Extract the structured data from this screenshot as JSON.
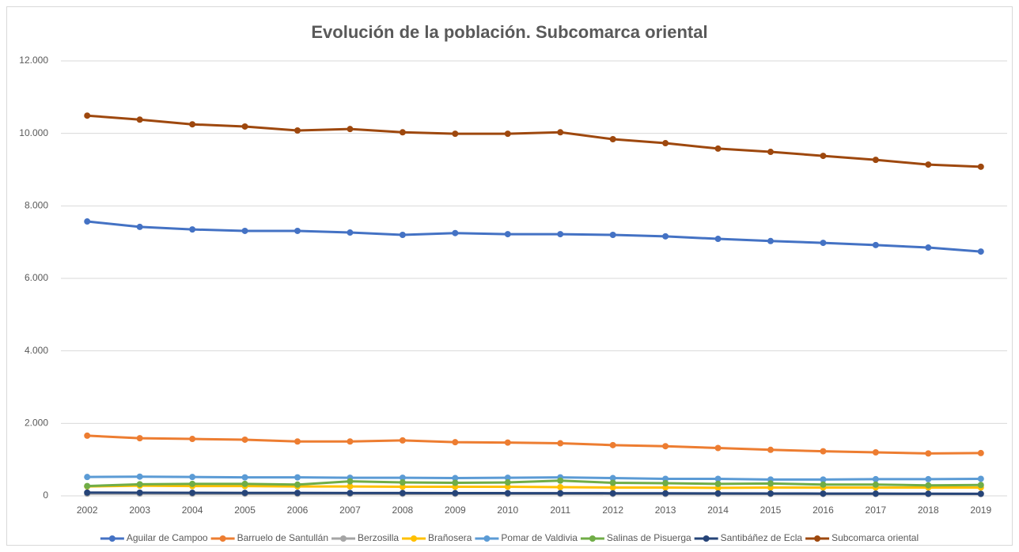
{
  "chart_data": {
    "type": "line",
    "title": "Evolución de la población. Subcomarca oriental",
    "categories": [
      "2002",
      "2003",
      "2004",
      "2005",
      "2006",
      "2007",
      "2008",
      "2009",
      "2010",
      "2011",
      "2012",
      "2013",
      "2014",
      "2015",
      "2016",
      "2017",
      "2018",
      "2019"
    ],
    "ylim": [
      0,
      12000
    ],
    "yticks": [
      0,
      {
        "value": 2000,
        "label": "2.000"
      },
      {
        "value": 4000,
        "label": "4.000"
      },
      {
        "value": 6000,
        "label": "6.000"
      },
      {
        "value": 8000,
        "label": "8.000"
      },
      {
        "value": 10000,
        "label": "10.000"
      },
      {
        "value": 12000,
        "label": "12.000"
      }
    ],
    "grid": true,
    "legend": "bottom",
    "series": [
      {
        "name": "Aguilar de Campoo",
        "color": "#4472c4",
        "values": [
          7570,
          7420,
          7350,
          7310,
          7310,
          7265,
          7200,
          7250,
          7220,
          7220,
          7200,
          7160,
          7090,
          7030,
          6980,
          6920,
          6850,
          6740
        ]
      },
      {
        "name": "Barruelo de Santullán",
        "color": "#ed7d31",
        "values": [
          1660,
          1590,
          1570,
          1550,
          1500,
          1500,
          1530,
          1480,
          1470,
          1450,
          1400,
          1370,
          1320,
          1270,
          1230,
          1200,
          1170,
          1180
        ]
      },
      {
        "name": "Berzosilla",
        "color": "#a5a5a5",
        "values": [
          60,
          60,
          58,
          58,
          57,
          56,
          55,
          55,
          54,
          54,
          53,
          52,
          52,
          51,
          50,
          50,
          49,
          49
        ]
      },
      {
        "name": "Brañosera",
        "color": "#ffc000",
        "values": [
          260,
          280,
          270,
          270,
          260,
          260,
          250,
          250,
          250,
          240,
          230,
          230,
          220,
          230,
          230,
          230,
          230,
          230
        ]
      },
      {
        "name": "Pomar de Valdivia",
        "color": "#5b9bd5",
        "values": [
          520,
          530,
          520,
          510,
          510,
          500,
          500,
          490,
          500,
          510,
          490,
          470,
          470,
          450,
          450,
          460,
          460,
          470
        ]
      },
      {
        "name": "Salinas de Pisuerga",
        "color": "#70ad47",
        "values": [
          270,
          320,
          330,
          330,
          310,
          400,
          370,
          360,
          370,
          420,
          360,
          350,
          330,
          340,
          310,
          310,
          290,
          300
        ]
      },
      {
        "name": "Santibáñez de Ecla",
        "color": "#264478",
        "values": [
          90,
          88,
          85,
          83,
          82,
          80,
          78,
          76,
          75,
          74,
          72,
          70,
          68,
          66,
          64,
          62,
          60,
          58
        ]
      },
      {
        "name": "Subcomarca oriental",
        "color": "#9e480e",
        "values": [
          10490,
          10380,
          10250,
          10190,
          10080,
          10120,
          10030,
          9990,
          9990,
          10030,
          9840,
          9730,
          9580,
          9490,
          9380,
          9270,
          9140,
          9080
        ]
      }
    ]
  }
}
